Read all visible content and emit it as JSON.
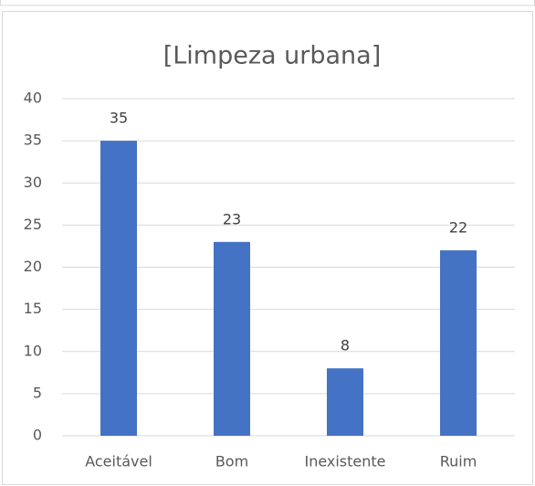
{
  "chart_data": {
    "type": "bar",
    "title": "[Limpeza urbana]",
    "categories": [
      "Aceitável",
      "Bom",
      "Inexistente",
      "Ruim"
    ],
    "values": [
      35,
      23,
      8,
      22
    ],
    "color": "#4472c4",
    "ylim": [
      0,
      40
    ],
    "yticks": [
      0,
      5,
      10,
      15,
      20,
      25,
      30,
      35,
      40
    ],
    "grid": true,
    "data_labels": true
  }
}
